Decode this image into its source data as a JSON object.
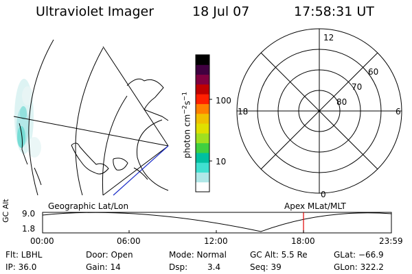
{
  "header": {
    "title": "Ultraviolet Imager",
    "date": "18 Jul 07",
    "time": "17:58:31 UT"
  },
  "colorbar": {
    "label_base": "photon cm",
    "label_exp1": "−2",
    "label_mid": "s",
    "label_exp2": "−1",
    "tick_100": "100",
    "tick_10": "10",
    "colors": [
      "#ffffff",
      "#b0e8e8",
      "#40e0d0",
      "#00c0a0",
      "#40d040",
      "#a0e020",
      "#e0e000",
      "#f0c000",
      "#ff8000",
      "#ff2000",
      "#c00000",
      "#800040",
      "#400040",
      "#000000"
    ]
  },
  "polar": {
    "mlt_12": "12",
    "mlt_18": "18",
    "mlt_6": "6",
    "mlt_0": "0",
    "lat_60": "60",
    "lat_70": "70",
    "lat_80": "80"
  },
  "map_labels": {
    "left": "Geographic Lat/Lon",
    "right": "Apex MLat/MLT"
  },
  "altitude_plot": {
    "ylabel": "GC Alt",
    "y_top": "9.0",
    "y_bottom": "1.8",
    "x_ticks": [
      "00:00",
      "06:00",
      "12:00",
      "18:00",
      "23:59"
    ],
    "marker_color": "#e00000"
  },
  "footer": {
    "filter": "Flt: LBHL",
    "ip": "IP: 36.0",
    "door": "Door: Open",
    "gain": "Gain: 14",
    "mode": "Mode: Normal",
    "dsp_label": "Dsp:",
    "dsp_value": "3.4",
    "gc_alt": "GC Alt: 5.5 Re",
    "seq": "Seq: 39",
    "glat": "GLat: −66.9",
    "glon": "GLon: 322.2"
  }
}
